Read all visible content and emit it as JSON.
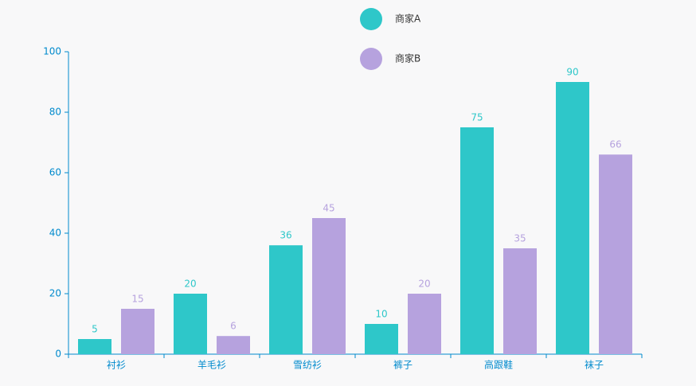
{
  "chart_data": {
    "type": "bar",
    "categories": [
      "衬衫",
      "羊毛衫",
      "雪纺衫",
      "裤子",
      "高跟鞋",
      "袜子"
    ],
    "series": [
      {
        "name": "商家A",
        "color": "#2ec7c9",
        "values": [
          5,
          20,
          36,
          10,
          75,
          90
        ]
      },
      {
        "name": "商家B",
        "color": "#b6a2de",
        "values": [
          15,
          6,
          45,
          20,
          35,
          66
        ]
      }
    ],
    "ylim": [
      0,
      100
    ],
    "yticks": [
      0,
      20,
      40,
      60,
      80,
      100
    ],
    "axis_color": "#008acd",
    "grid": false
  }
}
